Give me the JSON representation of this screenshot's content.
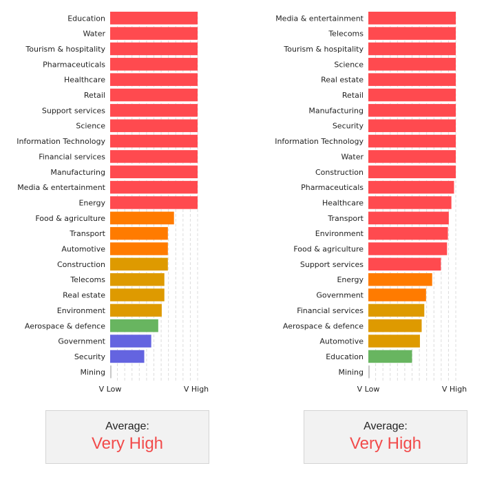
{
  "colors": {
    "red": "#ff4a4f",
    "orange": "#ff7b00",
    "amber": "#de9a00",
    "green": "#68b560",
    "blue": "#6464e0",
    "grey": "#c8c8c8",
    "grid": "#dcdcdc",
    "average_text": "#f24b4b"
  },
  "chart_data": [
    {
      "type": "bar",
      "orientation": "horizontal",
      "scale": {
        "min": 0,
        "max": 100
      },
      "tick_labels": [
        "V Low",
        "V High"
      ],
      "grid": "dashed vertical",
      "categories": [
        "Education",
        "Water",
        "Tourism & hospitality",
        "Pharmaceuticals",
        "Healthcare",
        "Retail",
        "Support services",
        "Science",
        "Information Technology",
        "Financial services",
        "Manufacturing",
        "Media & entertainment",
        "Energy",
        "Food & agriculture",
        "Transport",
        "Automotive",
        "Construction",
        "Telecoms",
        "Real estate",
        "Environment",
        "Aerospace & defence",
        "Government",
        "Security",
        "Mining"
      ],
      "values": [
        100,
        100,
        100,
        100,
        100,
        100,
        100,
        100,
        100,
        100,
        100,
        100,
        100,
        73,
        66,
        66,
        66,
        62,
        62,
        59,
        55,
        47,
        39,
        0
      ],
      "bar_colors": [
        "red",
        "red",
        "red",
        "red",
        "red",
        "red",
        "red",
        "red",
        "red",
        "red",
        "red",
        "red",
        "red",
        "orange",
        "orange",
        "orange",
        "amber",
        "amber",
        "amber",
        "amber",
        "green",
        "blue",
        "blue",
        "grey"
      ]
    },
    {
      "type": "bar",
      "orientation": "horizontal",
      "scale": {
        "min": 0,
        "max": 100
      },
      "tick_labels": [
        "V Low",
        "V High"
      ],
      "grid": "dashed vertical",
      "categories": [
        "Media & entertainment",
        "Telecoms",
        "Tourism & hospitality",
        "Science",
        "Real estate",
        "Retail",
        "Manufacturing",
        "Security",
        "Information Technology",
        "Water",
        "Construction",
        "Pharmaceuticals",
        "Healthcare",
        "Transport",
        "Environment",
        "Food & agriculture",
        "Support services",
        "Energy",
        "Government",
        "Financial services",
        "Aerospace & defence",
        "Automotive",
        "Education",
        "Mining"
      ],
      "values": [
        100,
        100,
        100,
        100,
        100,
        100,
        100,
        100,
        100,
        100,
        100,
        98,
        95,
        92,
        91,
        90,
        83,
        73,
        66,
        64,
        61,
        59,
        50,
        0
      ],
      "bar_colors": [
        "red",
        "red",
        "red",
        "red",
        "red",
        "red",
        "red",
        "red",
        "red",
        "red",
        "red",
        "red",
        "red",
        "red",
        "red",
        "red",
        "red",
        "orange",
        "orange",
        "amber",
        "amber",
        "amber",
        "green",
        "grey"
      ]
    }
  ],
  "averages": [
    {
      "title": "Average:",
      "value": "Very High"
    },
    {
      "title": "Average:",
      "value": "Very High"
    }
  ]
}
